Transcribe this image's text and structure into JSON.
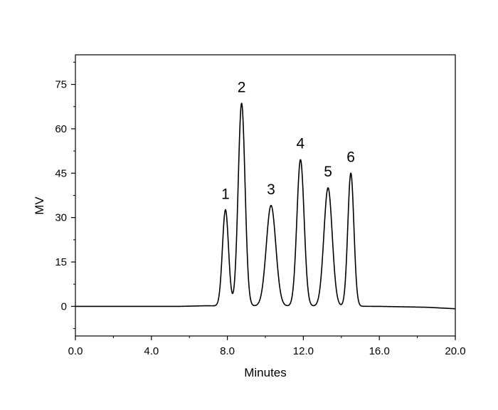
{
  "chart_data": {
    "type": "line",
    "title": "",
    "xlabel": "Minutes",
    "ylabel": "MV",
    "xlim": [
      0,
      20
    ],
    "ylim": [
      -10,
      85
    ],
    "x_ticks": [
      0.0,
      4.0,
      8.0,
      12.0,
      16.0,
      20.0
    ],
    "x_tick_labels": [
      "0.0",
      "4.0",
      "8.0",
      "12.0",
      "16.0",
      "20.0"
    ],
    "y_ticks": [
      0,
      15,
      30,
      45,
      60,
      75
    ],
    "y_tick_labels": [
      "0",
      "15",
      "30",
      "45",
      "60",
      "75"
    ],
    "grid": false,
    "legend": "none",
    "line_color": "#000000",
    "series": [
      {
        "peaks": [
          {
            "label": "1",
            "center": 7.9,
            "height": 32.5,
            "width": 0.16
          },
          {
            "label": "2",
            "center": 8.75,
            "height": 68.5,
            "width": 0.18
          },
          {
            "label": "3",
            "center": 10.3,
            "height": 34.0,
            "width": 0.25
          },
          {
            "label": "4",
            "center": 11.85,
            "height": 49.5,
            "width": 0.19
          },
          {
            "label": "5",
            "center": 13.3,
            "height": 40.0,
            "width": 0.22
          },
          {
            "label": "6",
            "center": 14.5,
            "height": 45.0,
            "width": 0.16
          }
        ],
        "baseline": [
          [
            0,
            0
          ],
          [
            5.5,
            0
          ],
          [
            6.8,
            0.2
          ],
          [
            16.0,
            0
          ],
          [
            18.5,
            -0.3
          ],
          [
            20.0,
            -0.8
          ]
        ]
      }
    ],
    "annotations": [
      "1",
      "2",
      "3",
      "4",
      "5",
      "6"
    ]
  }
}
